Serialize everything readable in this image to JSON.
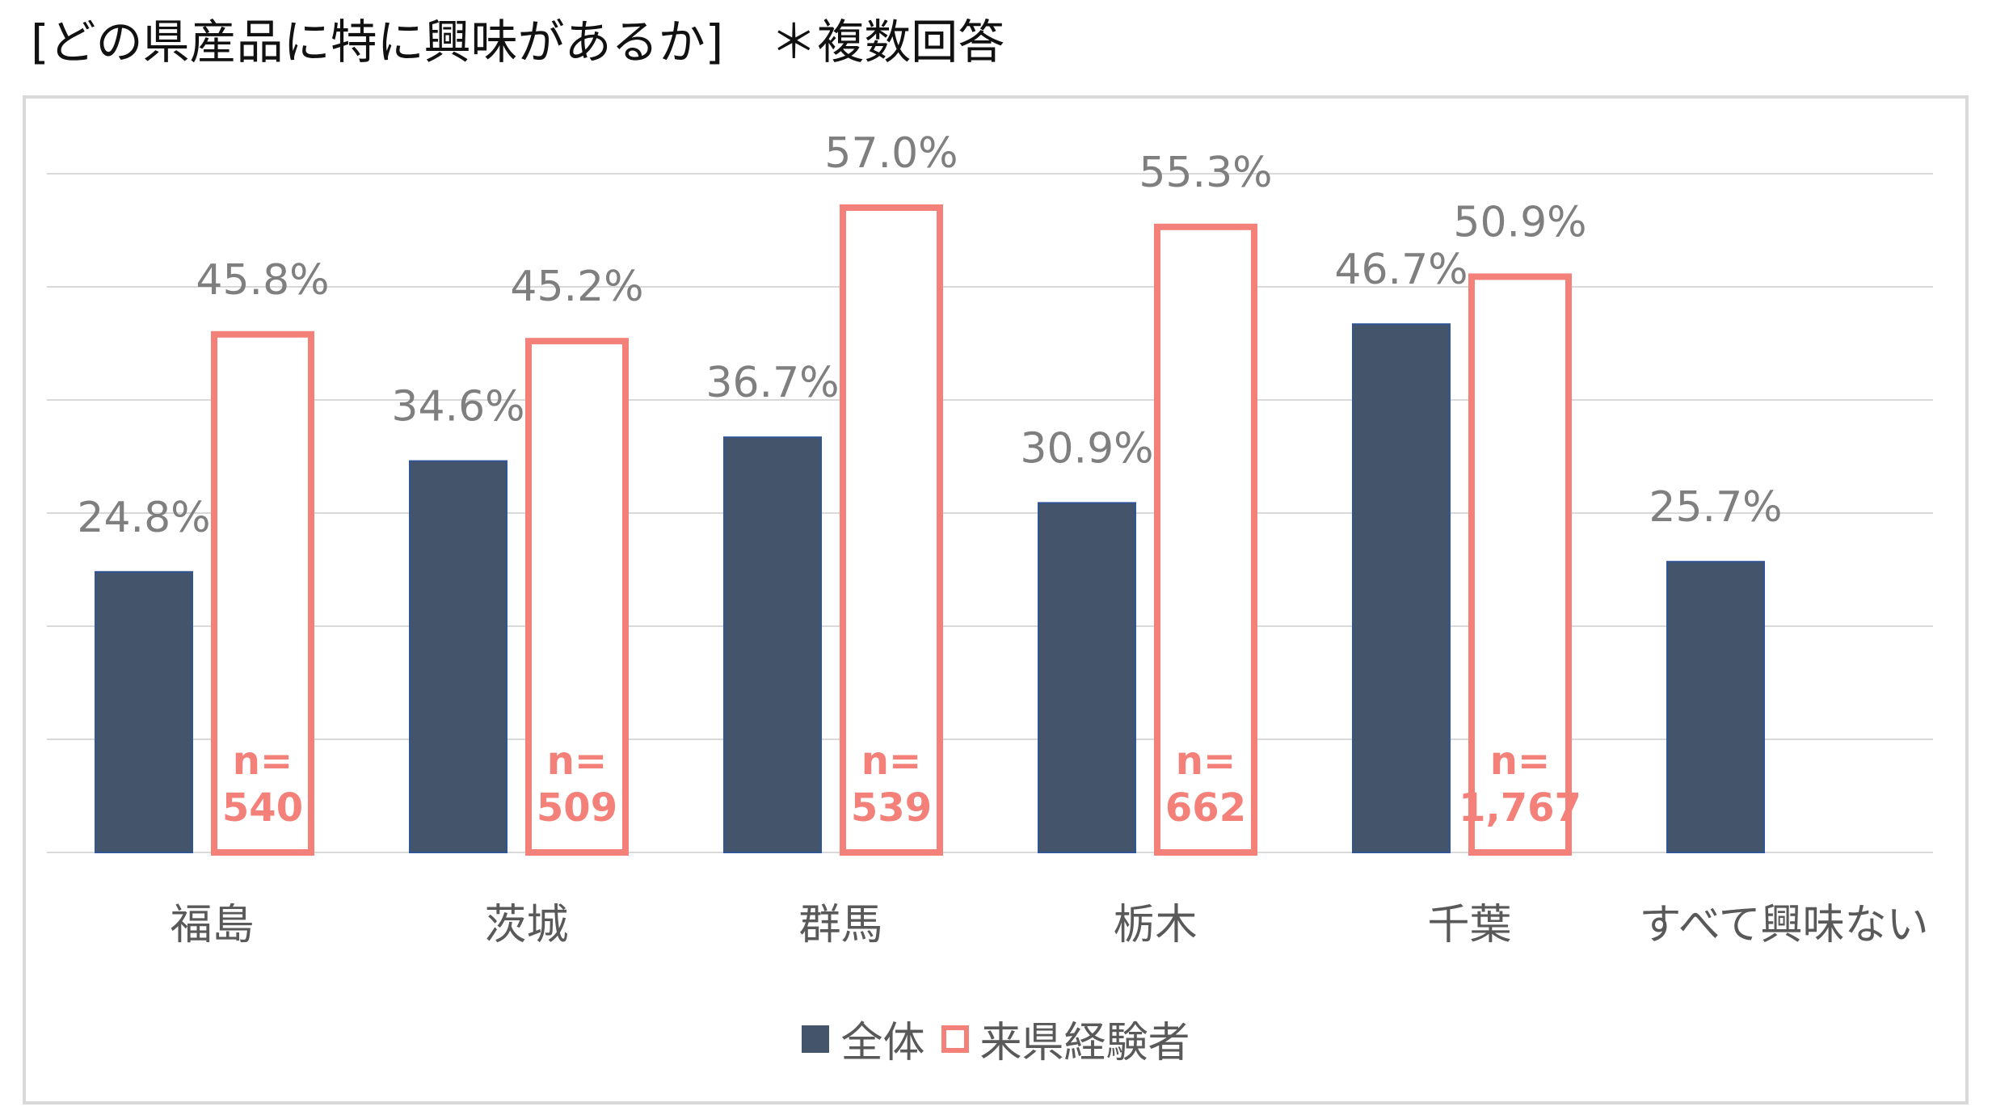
{
  "header": {
    "title": "[どの県産品に特に興味があるか]　＊複数回答"
  },
  "colors": {
    "overall": "#44546a",
    "visitors": "#f4807a",
    "label": "#7f7f7f",
    "grid": "#d9d9d9"
  },
  "chart_data": {
    "type": "bar",
    "categories": [
      "福島",
      "茨城",
      "群馬",
      "栃木",
      "千葉",
      "すべて興味ない"
    ],
    "series": [
      {
        "name": "全体",
        "values": [
          24.8,
          34.6,
          36.7,
          30.9,
          46.7,
          25.7
        ],
        "labels": [
          "24.8%",
          "34.6%",
          "36.7%",
          "30.9%",
          "46.7%",
          "25.7%"
        ],
        "style": "filled"
      },
      {
        "name": "来県経験者",
        "values": [
          45.8,
          45.2,
          57.0,
          55.3,
          50.9,
          null
        ],
        "labels": [
          "45.8%",
          "45.2%",
          "57.0%",
          "55.3%",
          "50.9%",
          null
        ],
        "style": "outline"
      }
    ],
    "n_labels": [
      "540",
      "509",
      "539",
      "662",
      "1,767",
      null
    ],
    "n_prefix": "n=",
    "ylim": [
      0,
      60
    ],
    "gridlines": [
      0,
      10,
      20,
      30,
      40,
      50,
      60
    ],
    "grid": true,
    "legend_position": "bottom",
    "xlabel": "",
    "ylabel": ""
  }
}
